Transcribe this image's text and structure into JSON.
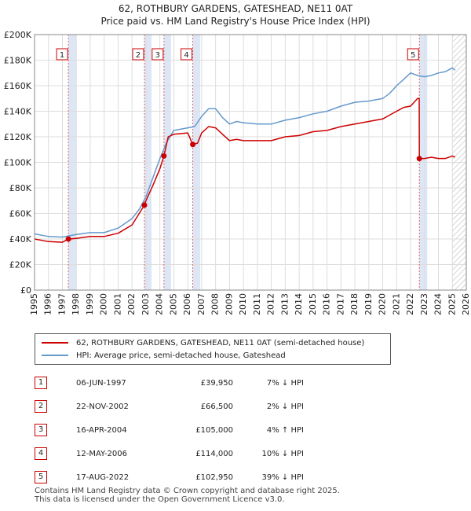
{
  "page_title_line1": "62, ROTHBURY GARDENS, GATESHEAD, NE11 0AT",
  "page_title_line2": "Price paid vs. HM Land Registry's House Price Index (HPI)",
  "colors": {
    "property": "#cc0000",
    "hpi": "#6699cc",
    "band": "#dde6f5",
    "hatch": "#c8c8c8",
    "grid": "#dddddd"
  },
  "legend": {
    "property_label": "62, ROTHBURY GARDENS, GATESHEAD, NE11 0AT (semi-detached house)",
    "hpi_label": "HPI: Average price, semi-detached house, Gateshead"
  },
  "sales": [
    {
      "num": "1",
      "date": "06-JUN-1997",
      "price": "£39,950",
      "hpi": "7% ↓ HPI"
    },
    {
      "num": "2",
      "date": "22-NOV-2002",
      "price": "£66,500",
      "hpi": "2% ↓ HPI"
    },
    {
      "num": "3",
      "date": "16-APR-2004",
      "price": "£105,000",
      "hpi": "4% ↑ HPI"
    },
    {
      "num": "4",
      "date": "12-MAY-2006",
      "price": "£114,000",
      "hpi": "10% ↓ HPI"
    },
    {
      "num": "5",
      "date": "17-AUG-2022",
      "price": "£102,950",
      "hpi": "39% ↓ HPI"
    }
  ],
  "footer": {
    "line1": "Contains HM Land Registry data © Crown copyright and database right 2025.",
    "line2": "This data is licensed under the Open Government Licence v3.0."
  },
  "chart_data": {
    "type": "line",
    "title": "62, ROTHBURY GARDENS, GATESHEAD, NE11 0AT",
    "subtitle": "Price paid vs. HM Land Registry's House Price Index (HPI)",
    "xlim": [
      1995,
      2026
    ],
    "ylim": [
      0,
      200000
    ],
    "x_ticks": [
      1995,
      1996,
      1997,
      1998,
      1999,
      2000,
      2001,
      2002,
      2003,
      2004,
      2005,
      2006,
      2007,
      2008,
      2009,
      2010,
      2011,
      2012,
      2013,
      2014,
      2015,
      2016,
      2017,
      2018,
      2019,
      2020,
      2021,
      2022,
      2023,
      2024,
      2025,
      2026
    ],
    "y_ticks": [
      0,
      20000,
      40000,
      60000,
      80000,
      100000,
      120000,
      140000,
      160000,
      180000,
      200000
    ],
    "y_tick_labels": [
      "£0",
      "£20K",
      "£40K",
      "£60K",
      "£80K",
      "£100K",
      "£120K",
      "£140K",
      "£160K",
      "£180K",
      "£200K"
    ],
    "grid": true,
    "shaded_bands": [
      [
        1997.43,
        1998.0
      ],
      [
        2002.89,
        2003.4
      ],
      [
        2004.29,
        2004.8
      ],
      [
        2006.36,
        2006.9
      ],
      [
        2022.63,
        2023.2
      ]
    ],
    "future_hatch_from": 2025.0,
    "series": [
      {
        "name": "HPI: Average price, semi-detached house, Gateshead",
        "x": [
          1995,
          1996,
          1997,
          1997.5,
          1998,
          1999,
          2000,
          2001,
          2002,
          2002.5,
          2003,
          2003.5,
          2004,
          2004.5,
          2005,
          2006,
          2006.5,
          2007,
          2007.5,
          2008,
          2008.5,
          2009,
          2009.5,
          2010,
          2011,
          2012,
          2013,
          2014,
          2015,
          2016,
          2017,
          2018,
          2019,
          2020,
          2020.5,
          2021,
          2021.5,
          2022,
          2022.5,
          2023,
          2023.5,
          2024,
          2024.5,
          2025,
          2025.2
        ],
        "y": [
          44000,
          42000,
          41500,
          42500,
          43500,
          45000,
          45000,
          48500,
          56000,
          63000,
          73000,
          88000,
          103000,
          116000,
          125000,
          127000,
          128000,
          136000,
          142000,
          142000,
          135000,
          130000,
          132000,
          131000,
          130000,
          130000,
          133000,
          135000,
          138000,
          140000,
          144000,
          147000,
          148000,
          150000,
          154000,
          160000,
          165000,
          170000,
          168000,
          167000,
          168000,
          170000,
          171000,
          174000,
          172000
        ]
      },
      {
        "name": "62, ROTHBURY GARDENS, GATESHEAD, NE11 0AT (semi-detached house)",
        "x": [
          1995,
          1996,
          1997,
          1997.43,
          1998,
          1999,
          2000,
          2001,
          2002,
          2002.89,
          2003,
          2003.5,
          2004,
          2004.29,
          2004.6,
          2005,
          2006,
          2006.36,
          2006.7,
          2007,
          2007.5,
          2008,
          2008.5,
          2009,
          2009.5,
          2010,
          2011,
          2012,
          2013,
          2014,
          2015,
          2016,
          2017,
          2018,
          2019,
          2020,
          2020.5,
          2021,
          2021.5,
          2022,
          2022.5,
          2022.62,
          2022.63,
          2023,
          2023.5,
          2024,
          2024.5,
          2025,
          2025.2
        ],
        "y": [
          40000,
          38000,
          37500,
          39950,
          40500,
          42000,
          42000,
          44500,
          51000,
          66500,
          70000,
          82000,
          95000,
          105000,
          120000,
          122000,
          123000,
          114000,
          115000,
          123000,
          128000,
          127000,
          122000,
          117000,
          118000,
          117000,
          117000,
          117000,
          120000,
          121000,
          124000,
          125000,
          128000,
          130000,
          132000,
          134000,
          137000,
          140000,
          143000,
          144000,
          150000,
          150000,
          102950,
          103000,
          104000,
          103000,
          103000,
          105000,
          104000
        ]
      }
    ],
    "sale_points": [
      {
        "label": "1",
        "x": 1997.43,
        "y": 39950
      },
      {
        "label": "2",
        "x": 2002.89,
        "y": 66500
      },
      {
        "label": "3",
        "x": 2004.29,
        "y": 105000
      },
      {
        "label": "4",
        "x": 2006.36,
        "y": 114000
      },
      {
        "label": "5",
        "x": 2022.63,
        "y": 102950
      }
    ]
  }
}
